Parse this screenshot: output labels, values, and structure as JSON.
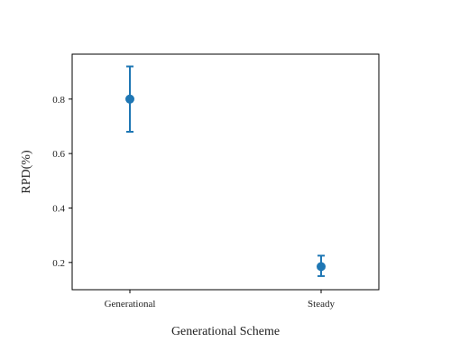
{
  "chart_data": {
    "type": "scatter",
    "xlabel": "Generational Scheme",
    "ylabel": "RPD(%)",
    "categories": [
      "Generational",
      "Steady"
    ],
    "points": [
      {
        "category": "Generational",
        "mean": 0.8,
        "lower": 0.68,
        "upper": 0.92
      },
      {
        "category": "Steady",
        "mean": 0.185,
        "lower": 0.15,
        "upper": 0.225
      }
    ],
    "ylim": [
      0.1,
      0.965
    ],
    "yticks": [
      0.2,
      0.4,
      0.6,
      0.8
    ],
    "ytick_labels": [
      "0.2",
      "0.4",
      "0.6",
      "0.8"
    ],
    "grid": false,
    "color": "#1f77b4"
  }
}
